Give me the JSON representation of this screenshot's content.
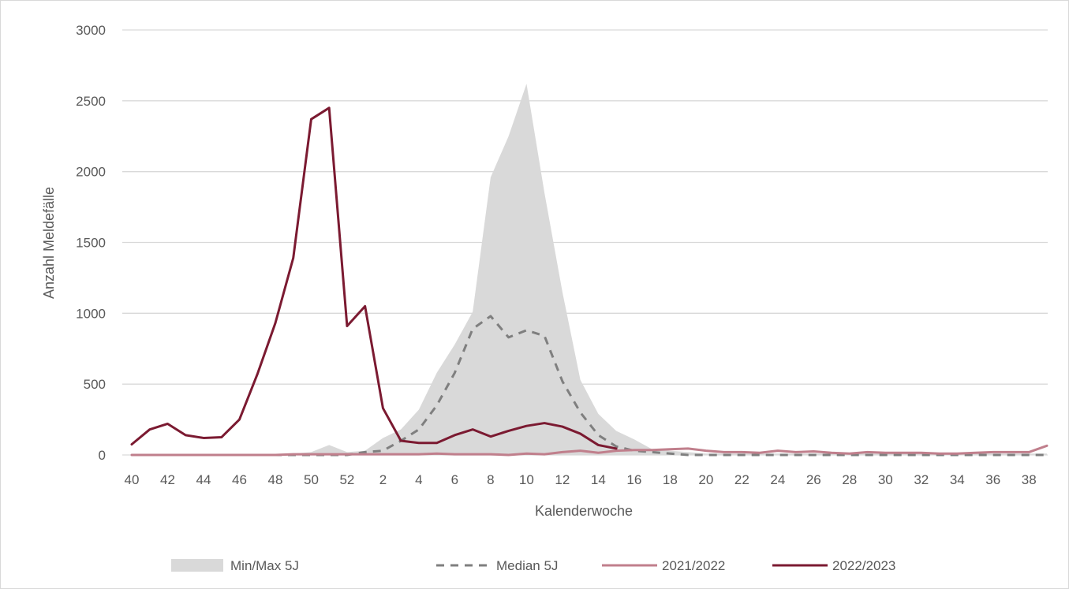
{
  "chart_data": {
    "type": "line",
    "xlabel": "Kalenderwoche",
    "ylabel": "Anzahl Meldefälle",
    "ylim": [
      0,
      3000
    ],
    "yticks": [
      0,
      500,
      1000,
      1500,
      2000,
      2500,
      3000
    ],
    "grid": true,
    "legend_position": "bottom",
    "weeks": [
      40,
      41,
      42,
      43,
      44,
      45,
      46,
      47,
      48,
      49,
      50,
      51,
      52,
      1,
      2,
      3,
      4,
      5,
      6,
      7,
      8,
      9,
      10,
      11,
      12,
      13,
      14,
      15,
      16,
      17,
      18,
      19,
      20,
      21,
      22,
      23,
      24,
      25,
      26,
      27,
      28,
      29,
      30,
      31,
      32,
      33,
      34,
      35,
      36,
      37,
      38,
      39
    ],
    "x_tick_labels": [
      "40",
      "42",
      "44",
      "46",
      "48",
      "50",
      "52",
      "2",
      "4",
      "6",
      "8",
      "10",
      "12",
      "14",
      "16",
      "18",
      "20",
      "22",
      "24",
      "26",
      "28",
      "30",
      "32",
      "34",
      "36",
      "38"
    ],
    "band": {
      "name": "Min/Max 5J",
      "color": "#d9d9d9",
      "min": [
        0,
        0,
        0,
        0,
        0,
        0,
        0,
        0,
        0,
        0,
        0,
        0,
        0,
        0,
        0,
        0,
        0,
        0,
        0,
        0,
        0,
        0,
        0,
        0,
        0,
        0,
        0,
        0,
        0,
        0,
        0,
        0,
        0,
        0,
        0,
        0,
        0,
        0,
        0,
        0,
        0,
        0,
        0,
        0,
        0,
        0,
        0,
        0,
        0,
        0,
        0,
        0
      ],
      "max": [
        0,
        0,
        0,
        0,
        0,
        0,
        0,
        0,
        0,
        10,
        20,
        70,
        20,
        30,
        120,
        180,
        320,
        580,
        780,
        1010,
        1960,
        2250,
        2620,
        1850,
        1150,
        530,
        290,
        170,
        110,
        40,
        30,
        20,
        10,
        10,
        10,
        10,
        10,
        10,
        10,
        10,
        10,
        10,
        10,
        10,
        10,
        10,
        10,
        10,
        10,
        10,
        10,
        10
      ]
    },
    "series": [
      {
        "name": "Median 5J",
        "color": "#7f7f7f",
        "dashed": true,
        "values": [
          0,
          0,
          0,
          0,
          0,
          0,
          0,
          0,
          0,
          0,
          0,
          0,
          0,
          20,
          30,
          100,
          180,
          350,
          580,
          890,
          980,
          830,
          880,
          840,
          520,
          300,
          140,
          60,
          30,
          20,
          10,
          0,
          0,
          0,
          0,
          0,
          0,
          0,
          0,
          0,
          0,
          0,
          0,
          0,
          0,
          0,
          0,
          0,
          0,
          0,
          0,
          0
        ]
      },
      {
        "name": "2021/2022",
        "color": "#c07f8c",
        "dashed": false,
        "values": [
          0,
          0,
          0,
          0,
          0,
          0,
          0,
          0,
          0,
          5,
          5,
          5,
          5,
          5,
          5,
          5,
          5,
          10,
          5,
          5,
          5,
          0,
          10,
          5,
          20,
          30,
          15,
          30,
          35,
          35,
          40,
          45,
          30,
          20,
          20,
          15,
          30,
          20,
          25,
          15,
          10,
          20,
          15,
          15,
          15,
          10,
          10,
          15,
          20,
          20,
          20,
          65
        ]
      },
      {
        "name": "2022/2023",
        "color": "#7b1a31",
        "dashed": false,
        "values": [
          75,
          180,
          220,
          140,
          120,
          125,
          250,
          570,
          930,
          1390,
          2370,
          2450,
          910,
          1050,
          330,
          100,
          85,
          85,
          140,
          180,
          130,
          170,
          205,
          225,
          200,
          150,
          70,
          45
        ]
      }
    ]
  }
}
